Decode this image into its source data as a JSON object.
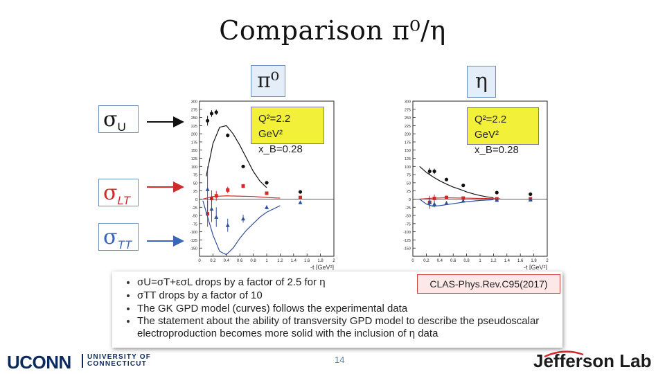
{
  "title": "Comparison π⁰/η",
  "panel_labels": {
    "left": "π⁰",
    "right": "η"
  },
  "sigma_labels": [
    {
      "symbol": "σ",
      "sub": "U",
      "color": "#111111"
    },
    {
      "symbol": "σ",
      "sub": "LT",
      "color": "#d12a2a"
    },
    {
      "symbol": "σ",
      "sub": "TT",
      "color": "#3a66b8"
    }
  ],
  "kinematics": {
    "left": {
      "line1": "Q²=2.2 GeV²",
      "line2": "x_B=0.28"
    },
    "right": {
      "line1": "Q²=2.2 GeV²",
      "line2": "x_B=0.28"
    }
  },
  "colors": {
    "u": "#111111",
    "lt": "#d12a2a",
    "tt": "#2e4f9a",
    "label_box": "#e3eef8",
    "kin_box": "#f3f03a"
  },
  "bullets": [
    "σU=σT+εσL drops by a factor of 2.5 for η",
    "σTT drops by a factor of 10",
    "The GK GPD model (curves) follows the experimental data",
    "The statement about the ability of transversity GPD model to describe the pseudoscalar electroproduction becomes more solid with the inclusion of η data"
  ],
  "reference": "CLAS-Phys.Rev.C95(2017)",
  "footer": {
    "page": "14",
    "uconn": "UCONN",
    "uconn_sub1": "UNIVERSITY OF",
    "uconn_sub2": "CONNECTICUT",
    "jlab": "Jefferson Lab"
  },
  "chart_data": [
    {
      "type": "scatter",
      "name": "pi0",
      "xlabel": "-t [GeV²]",
      "ylabel": "",
      "xlim": [
        0,
        2
      ],
      "ylim": [
        -175,
        300
      ],
      "xticks": [
        0,
        0.2,
        0.4,
        0.6,
        0.8,
        1,
        1.2,
        1.4,
        1.6,
        1.8,
        2
      ],
      "xticklabels": [
        "0",
        "0.2",
        "0.4",
        "0.6",
        "0.8",
        "1",
        "1.2",
        "1.4",
        "1.6",
        "1.8",
        "2"
      ],
      "yticks": [
        -150,
        -125,
        -100,
        -75,
        -50,
        -25,
        0,
        25,
        50,
        75,
        100,
        125,
        150,
        175,
        200,
        225,
        250,
        275,
        300
      ],
      "yticklabels": [
        "-150",
        "-125",
        "-100",
        "-75",
        "-50",
        "-25",
        "0",
        "25",
        "50",
        "75",
        "100",
        "125",
        "150",
        "175",
        "200",
        "225",
        "250",
        "275",
        "300"
      ],
      "series": [
        {
          "name": "sigma_U",
          "color": "#111111",
          "marker": "circle",
          "x": [
            0.12,
            0.18,
            0.25,
            0.42,
            0.65,
            1.0,
            1.5
          ],
          "y": [
            240,
            262,
            266,
            195,
            100,
            50,
            22
          ],
          "err": [
            15,
            10,
            8,
            6,
            4,
            3,
            2
          ],
          "curve_x": [
            0.1,
            0.2,
            0.3,
            0.4,
            0.5,
            0.6,
            0.7,
            0.8,
            0.9,
            1.0
          ],
          "curve_y": [
            70,
            170,
            220,
            225,
            200,
            165,
            125,
            85,
            55,
            35
          ]
        },
        {
          "name": "sigma_LT",
          "color": "#d12a2a",
          "marker": "square",
          "x": [
            0.12,
            0.18,
            0.25,
            0.42,
            0.65,
            1.0,
            1.5
          ],
          "y": [
            -45,
            2,
            10,
            28,
            40,
            18,
            5
          ],
          "err": [
            40,
            25,
            15,
            10,
            6,
            4,
            3
          ],
          "curve_x": [
            0.05,
            0.2,
            0.4,
            0.6,
            0.8,
            1.0,
            1.2
          ],
          "curve_y": [
            0,
            8,
            10,
            9,
            8,
            5,
            3
          ]
        },
        {
          "name": "sigma_TT",
          "color": "#2e4f9a",
          "marker": "triangle",
          "x": [
            0.12,
            0.18,
            0.25,
            0.42,
            0.65,
            1.0,
            1.5
          ],
          "y": [
            30,
            -30,
            -55,
            -80,
            -60,
            -25,
            -10
          ],
          "err": [
            70,
            40,
            30,
            20,
            12,
            6,
            4
          ],
          "curve_x": [
            0.05,
            0.1,
            0.2,
            0.3,
            0.4,
            0.5,
            0.6,
            0.7,
            0.8,
            0.9,
            1.0,
            1.1,
            1.2
          ],
          "curve_y": [
            -5,
            -40,
            -110,
            -160,
            -170,
            -150,
            -120,
            -95,
            -75,
            -55,
            -40,
            -30,
            -20
          ]
        }
      ]
    },
    {
      "type": "scatter",
      "name": "eta",
      "xlabel": "-t [GeV²]",
      "ylabel": "",
      "xlim": [
        0,
        2
      ],
      "ylim": [
        -175,
        300
      ],
      "xticks": [
        0,
        0.2,
        0.4,
        0.6,
        0.8,
        1,
        1.2,
        1.4,
        1.6,
        1.8,
        2
      ],
      "xticklabels": [
        "0",
        "0.2",
        "0.4",
        "0.6",
        "0.8",
        "1",
        "1.2",
        "1.4",
        "1.6",
        "1.8",
        "2"
      ],
      "yticks": [
        -150,
        -125,
        -100,
        -75,
        -50,
        -25,
        0,
        25,
        50,
        75,
        100,
        125,
        150,
        175,
        200,
        225,
        250,
        275,
        300
      ],
      "yticklabels": [
        "-150",
        "-125",
        "-100",
        "-75",
        "-50",
        "-25",
        "0",
        "25",
        "50",
        "75",
        "100",
        "125",
        "150",
        "175",
        "200",
        "225",
        "250",
        "275",
        "300"
      ],
      "series": [
        {
          "name": "sigma_U",
          "color": "#111111",
          "marker": "circle",
          "x": [
            0.25,
            0.32,
            0.5,
            0.75,
            1.25,
            1.75
          ],
          "y": [
            85,
            85,
            60,
            42,
            20,
            15
          ],
          "err": [
            10,
            8,
            5,
            4,
            3,
            3
          ],
          "curve_x": [
            0.1,
            0.2,
            0.3,
            0.4,
            0.5,
            0.6,
            0.7,
            0.8,
            0.9,
            1.0,
            1.1,
            1.2
          ],
          "curve_y": [
            100,
            82,
            68,
            56,
            46,
            37,
            30,
            22,
            16,
            11,
            7,
            4
          ]
        },
        {
          "name": "sigma_LT",
          "color": "#d12a2a",
          "marker": "square",
          "x": [
            0.25,
            0.32,
            0.5,
            0.75,
            1.25,
            1.75
          ],
          "y": [
            -10,
            2,
            5,
            3,
            1,
            1
          ],
          "err": [
            20,
            12,
            5,
            4,
            2,
            2
          ],
          "curve_x": [
            0.1,
            0.3,
            0.5,
            0.8,
            1.0,
            1.3
          ],
          "curve_y": [
            0,
            3,
            4,
            3,
            2,
            1
          ]
        },
        {
          "name": "sigma_TT",
          "color": "#2e4f9a",
          "marker": "triangle",
          "x": [
            0.25,
            0.32,
            0.5,
            0.75,
            1.25,
            1.75
          ],
          "y": [
            -10,
            -15,
            -12,
            -5,
            -3,
            -2
          ],
          "err": [
            15,
            10,
            6,
            4,
            3,
            2
          ],
          "curve_x": [
            0.1,
            0.2,
            0.3,
            0.4,
            0.6,
            0.8,
            1.0,
            1.2
          ],
          "curve_y": [
            0,
            -15,
            -22,
            -20,
            -14,
            -8,
            -4,
            -2
          ]
        }
      ]
    }
  ]
}
